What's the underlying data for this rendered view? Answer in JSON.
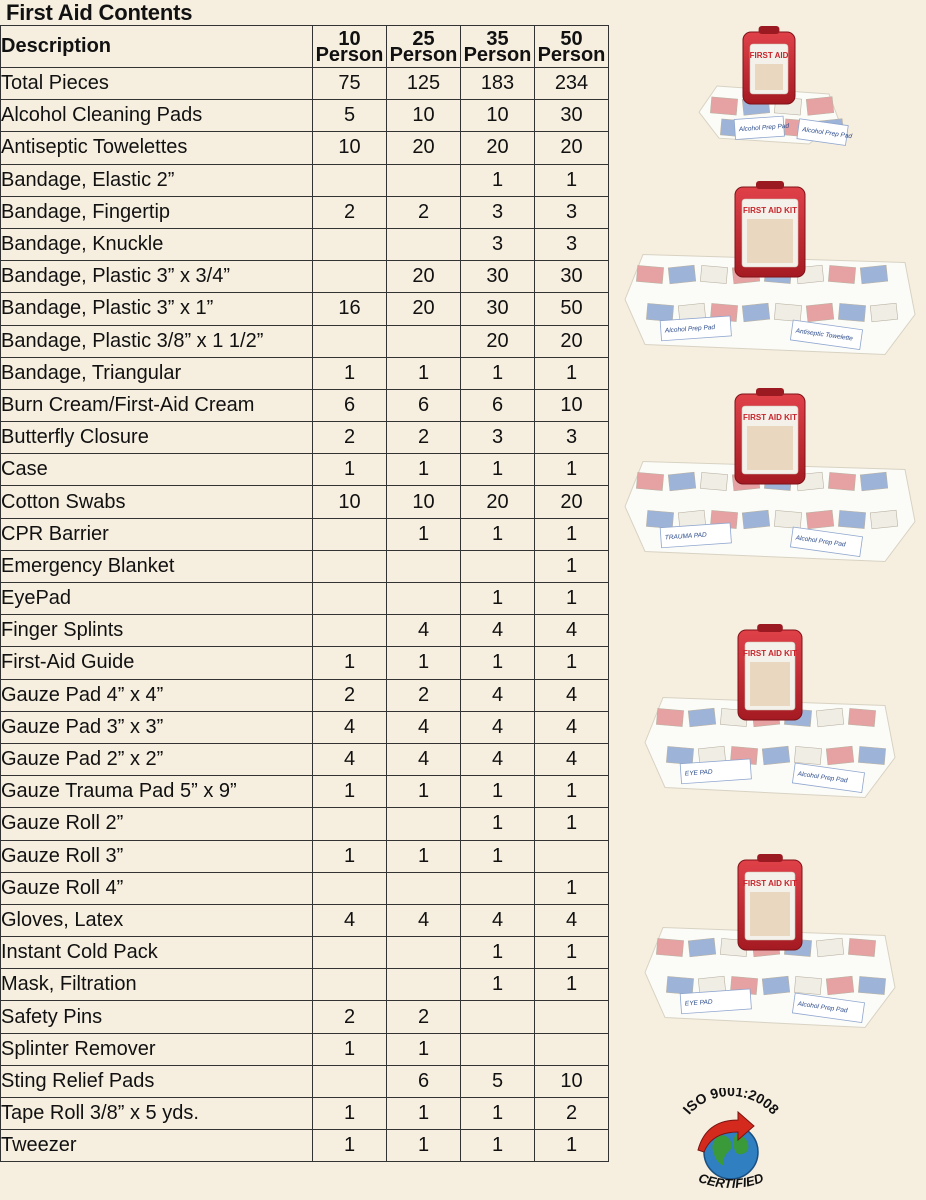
{
  "title": "First Aid Contents",
  "headers": {
    "description": "Description",
    "columns": [
      {
        "num": "10",
        "unit": "Person"
      },
      {
        "num": "25",
        "unit": "Person"
      },
      {
        "num": "35",
        "unit": "Person"
      },
      {
        "num": "50",
        "unit": "Person"
      }
    ]
  },
  "rows": [
    {
      "item": "Total Pieces",
      "values": [
        "75",
        "125",
        "183",
        "234"
      ]
    },
    {
      "item": "Alcohol Cleaning Pads",
      "values": [
        "5",
        "10",
        "10",
        "30"
      ]
    },
    {
      "item": "Antiseptic Towelettes",
      "values": [
        "10",
        "20",
        "20",
        "20"
      ]
    },
    {
      "item": "Bandage, Elastic 2”",
      "values": [
        "",
        "",
        "1",
        "1"
      ]
    },
    {
      "item": "Bandage, Fingertip",
      "values": [
        "2",
        "2",
        "3",
        "3"
      ]
    },
    {
      "item": "Bandage, Knuckle",
      "values": [
        "",
        "",
        "3",
        "3"
      ]
    },
    {
      "item": "Bandage, Plastic 3” x 3/4”",
      "values": [
        "",
        "20",
        "30",
        "30"
      ]
    },
    {
      "item": "Bandage, Plastic 3” x 1”",
      "values": [
        "16",
        "20",
        "30",
        "50"
      ]
    },
    {
      "item": "Bandage, Plastic 3/8” x 1 1/2”",
      "values": [
        "",
        "",
        "20",
        "20"
      ]
    },
    {
      "item": "Bandage, Triangular",
      "values": [
        "1",
        "1",
        "1",
        "1"
      ]
    },
    {
      "item": "Burn Cream/First-Aid Cream",
      "values": [
        "6",
        "6",
        "6",
        "10"
      ]
    },
    {
      "item": "Butterfly Closure",
      "values": [
        "2",
        "2",
        "3",
        "3"
      ]
    },
    {
      "item": "Case",
      "values": [
        "1",
        "1",
        "1",
        "1"
      ]
    },
    {
      "item": "Cotton Swabs",
      "values": [
        "10",
        "10",
        "20",
        "20"
      ]
    },
    {
      "item": "CPR Barrier",
      "values": [
        "",
        "1",
        "1",
        "1"
      ]
    },
    {
      "item": "Emergency Blanket",
      "values": [
        "",
        "",
        "",
        "1"
      ]
    },
    {
      "item": "EyePad",
      "values": [
        "",
        "",
        "1",
        "1"
      ]
    },
    {
      "item": "Finger Splints",
      "values": [
        "",
        "4",
        "4",
        "4"
      ]
    },
    {
      "item": "First-Aid Guide",
      "values": [
        "1",
        "1",
        "1",
        "1"
      ]
    },
    {
      "item": "Gauze Pad 4” x 4”",
      "values": [
        "2",
        "2",
        "4",
        "4"
      ]
    },
    {
      "item": "Gauze Pad 3” x 3”",
      "values": [
        "4",
        "4",
        "4",
        "4"
      ]
    },
    {
      "item": "Gauze Pad 2” x 2”",
      "values": [
        "4",
        "4",
        "4",
        "4"
      ]
    },
    {
      "item": "Gauze Trauma Pad 5” x 9”",
      "values": [
        "1",
        "1",
        "1",
        "1"
      ]
    },
    {
      "item": "Gauze Roll 2”",
      "values": [
        "",
        "",
        "1",
        "1"
      ]
    },
    {
      "item": "Gauze Roll 3”",
      "values": [
        "1",
        "1",
        "1",
        ""
      ]
    },
    {
      "item": "Gauze Roll 4”",
      "values": [
        "",
        "",
        "",
        "1"
      ]
    },
    {
      "item": "Gloves, Latex",
      "values": [
        "4",
        "4",
        "4",
        "4"
      ]
    },
    {
      "item": "Instant Cold Pack",
      "values": [
        "",
        "",
        "1",
        "1"
      ]
    },
    {
      "item": "Mask, Filtration",
      "values": [
        "",
        "",
        "1",
        "1"
      ]
    },
    {
      "item": "Safety Pins",
      "values": [
        "2",
        "2",
        "",
        ""
      ]
    },
    {
      "item": "Splinter Remover",
      "values": [
        "1",
        "1",
        "",
        ""
      ]
    },
    {
      "item": "Sting Relief Pads",
      "values": [
        "",
        "6",
        "5",
        "10"
      ]
    },
    {
      "item": "Tape Roll 3/8” x 5 yds.",
      "values": [
        "1",
        "1",
        "1",
        "2"
      ]
    },
    {
      "item": "Tweezer",
      "values": [
        "1",
        "1",
        "1",
        "1"
      ]
    }
  ],
  "kits": [
    {
      "case_label": "FIRST AID",
      "pad_labels": [
        "Alcohol Prep Pad",
        "Alcohol Prep Pad"
      ]
    },
    {
      "case_label": "FIRST AID KIT",
      "pad_labels": [
        "Alcohol Prep Pad",
        "Antiseptic Towelette"
      ]
    },
    {
      "case_label": "FIRST AID KIT",
      "pad_labels": [
        "TRAUMA PAD",
        "Alcohol Prep Pad"
      ]
    },
    {
      "case_label": "FIRST AID KIT",
      "pad_labels": [
        "EYE PAD",
        "Alcohol Prep Pad"
      ]
    },
    {
      "case_label": "FIRST AID KIT",
      "pad_labels": [
        "EYE PAD",
        "Alcohol Prep Pad"
      ]
    }
  ],
  "badge": {
    "top_text": "ISO 9001:2008",
    "bottom_text": "CERTIFIED"
  },
  "colors": {
    "background": "#f6efe0",
    "case_red": "#c8232b",
    "globe_blue": "#2f7fc1",
    "globe_green": "#3a9a3a",
    "arrow_red": "#d42a1e"
  }
}
